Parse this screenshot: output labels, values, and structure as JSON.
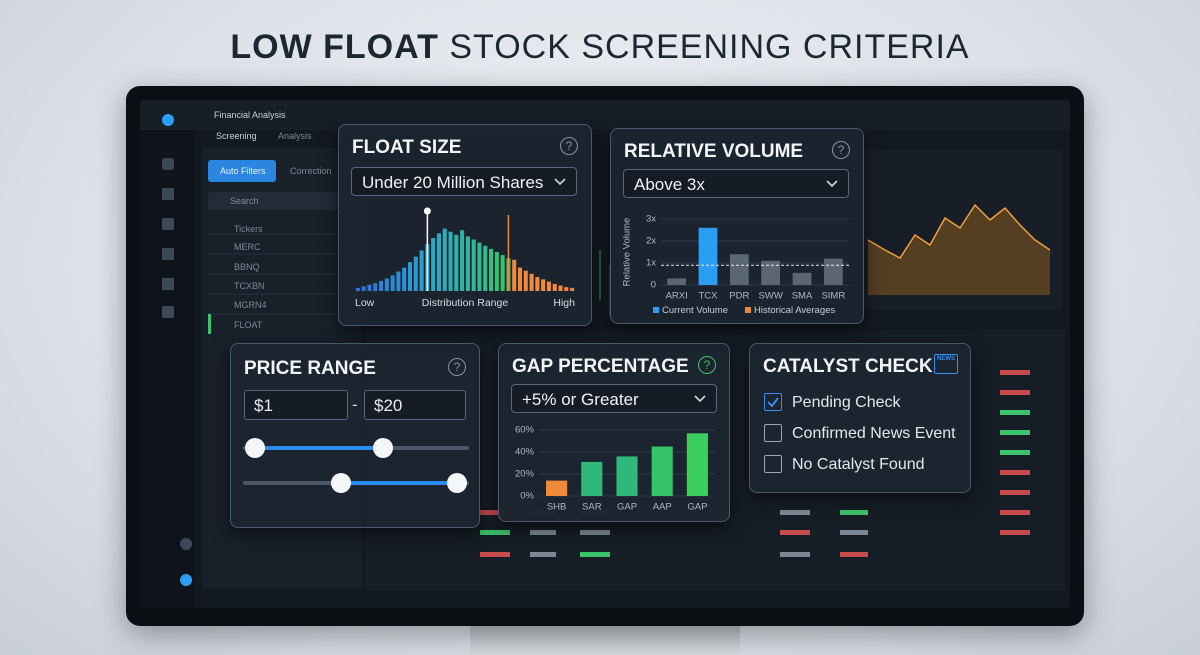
{
  "header": {
    "title_bold": "LOW FLOAT",
    "title_rest": "STOCK SCREENING CRITERIA"
  },
  "app": {
    "name": "Financial Analysis",
    "tabs": [
      "Screening",
      "Analysis"
    ],
    "buttons": [
      "Auto Filters",
      "Correction"
    ],
    "search": "Search",
    "list": [
      "Tickers",
      "MERC",
      "BBNQ",
      "TCXBN",
      "MGRN4",
      "FLOAT"
    ]
  },
  "float_size": {
    "title": "FLOAT SIZE",
    "help": "?",
    "selection": "Under 20 Million Shares",
    "chart_data": {
      "type": "bar",
      "values": [
        4,
        6,
        8,
        10,
        13,
        16,
        20,
        25,
        30,
        37,
        44,
        52,
        60,
        68,
        74,
        80,
        76,
        72,
        78,
        70,
        66,
        62,
        58,
        54,
        50,
        46,
        42,
        40,
        30,
        26,
        22,
        18,
        15,
        12,
        9,
        7,
        5,
        4
      ],
      "ylim": [
        0,
        100
      ],
      "x_labels": [
        "Low",
        "Distribution Range",
        "High"
      ],
      "color_stops": [
        "#2f6fe0",
        "#2aa8c8",
        "#3cc46a"
      ],
      "highlight_color": "#f08a3a",
      "highlight_from": 27,
      "marker": 12
    }
  },
  "relative_volume": {
    "title": "RELATIVE VOLUME",
    "help": "?",
    "selection": "Above 3x",
    "chart_data": {
      "type": "bar",
      "y_label": "Relative Volume",
      "categories": [
        "ARXI",
        "TCX",
        "PDR",
        "SWW",
        "SMA",
        "SIMR"
      ],
      "values": [
        0.3,
        2.6,
        1.4,
        1.1,
        0.55,
        1.2
      ],
      "color": "#5b6674",
      "current": "TCX",
      "reference_line": 0.9,
      "ylim": [
        0,
        3
      ],
      "yticks": [
        0,
        {
          "value": 1,
          "label": "1x"
        },
        {
          "value": 2,
          "label": "2x"
        },
        {
          "value": 3,
          "label": "3x"
        }
      ],
      "legend": [
        {
          "name": "Current Volume",
          "color": "#2a9df4"
        },
        {
          "name": "Historical Averages",
          "color": "#e8893a"
        }
      ]
    }
  },
  "price_range": {
    "title": "PRICE RANGE",
    "help": "?",
    "min": "$1",
    "separator": "-",
    "max": "$20"
  },
  "gap_percentage": {
    "title": "GAP PERCENTAGE",
    "help": "?",
    "selection": "+5% or Greater",
    "chart_data": {
      "type": "bar",
      "categories": [
        "SHB",
        "SAR",
        "GAP",
        "AAP",
        "GAP"
      ],
      "values": [
        14,
        31,
        36,
        45,
        57
      ],
      "colors": [
        "#f08a3a",
        "#2fb87a",
        "#2fb87a",
        "#34c26a",
        "#3ccf5e"
      ],
      "ylim": [
        0,
        60
      ],
      "yticks": [
        {
          "value": 0,
          "label": "0%"
        },
        {
          "value": 20,
          "label": "20%"
        },
        {
          "value": 40,
          "label": "40%"
        },
        {
          "value": 60,
          "label": "60%"
        }
      ]
    }
  },
  "catalyst_check": {
    "title": "CATALYST CHECK",
    "icon_text": "NEWS",
    "options": [
      {
        "label": "Pending Check",
        "checked": true
      },
      {
        "label": "Confirmed News Event",
        "checked": false
      },
      {
        "label": "No Catalyst Found",
        "checked": false
      }
    ]
  }
}
